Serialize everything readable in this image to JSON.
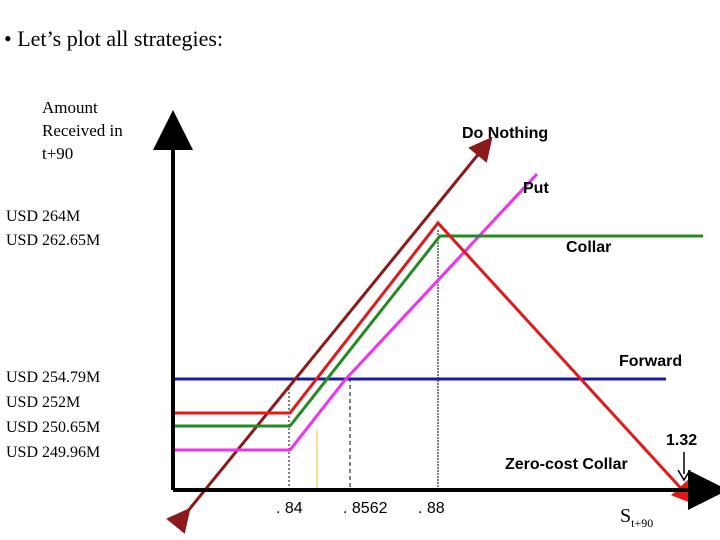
{
  "heading": "• Let’s plot all strategies:",
  "y_axis_label": "Amount Received in t+90",
  "x_axis_label": {
    "main": "S",
    "sub": "t+90"
  },
  "y_levels": {
    "l264": "USD 264M",
    "l262": "USD 262.65M",
    "l254": "USD 254.79M",
    "l252": "USD 252M",
    "l250": "USD 250.65M",
    "l249": "USD 249.96M"
  },
  "x_ticks": {
    "t84": ". 84",
    "t8562": ". 8562",
    "t88": ". 88"
  },
  "strategies": {
    "do_nothing": "Do Nothing",
    "put": "Put",
    "collar": "Collar",
    "forward": "Forward",
    "zero_cost_collar": "Zero-cost Collar"
  },
  "annotation_132": "1.32",
  "colors": {
    "do_nothing": "#8b1a1a",
    "put": "#ee33ee",
    "collar": "#228b22",
    "forward": "#1a1aaa",
    "zero_cost_collar": "#e01a1a",
    "axis": "#000000"
  }
}
